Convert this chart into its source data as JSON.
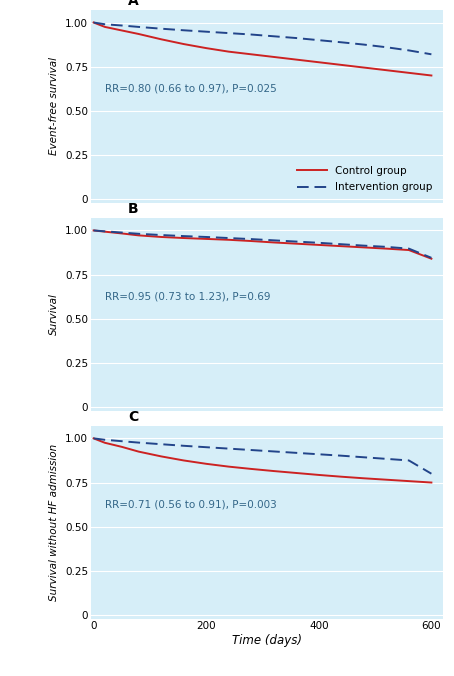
{
  "background_color": "#d6eef8",
  "figure_bg": "#ffffff",
  "control_color": "#cc2222",
  "intervention_color": "#22448a",
  "panels": [
    {
      "label": "A",
      "ylabel": "Event-free survival",
      "annotation": "RR=0.80 (0.66 to 0.97), P=0.025",
      "show_legend": true,
      "control_x": [
        0,
        20,
        50,
        80,
        120,
        160,
        200,
        240,
        280,
        320,
        360,
        400,
        440,
        480,
        520,
        560,
        600
      ],
      "control_y": [
        1.0,
        0.975,
        0.955,
        0.935,
        0.905,
        0.878,
        0.855,
        0.835,
        0.82,
        0.805,
        0.79,
        0.775,
        0.76,
        0.745,
        0.73,
        0.715,
        0.7
      ],
      "interv_x": [
        0,
        20,
        50,
        80,
        120,
        160,
        200,
        240,
        280,
        320,
        360,
        400,
        440,
        480,
        520,
        560,
        600
      ],
      "interv_y": [
        1.0,
        0.99,
        0.983,
        0.975,
        0.965,
        0.956,
        0.948,
        0.94,
        0.932,
        0.922,
        0.912,
        0.9,
        0.888,
        0.875,
        0.86,
        0.842,
        0.82
      ]
    },
    {
      "label": "B",
      "ylabel": "Survival",
      "annotation": "RR=0.95 (0.73 to 1.23), P=0.69",
      "show_legend": false,
      "control_x": [
        0,
        20,
        50,
        80,
        120,
        160,
        200,
        240,
        280,
        320,
        360,
        400,
        440,
        480,
        520,
        560,
        600
      ],
      "control_y": [
        1.0,
        0.993,
        0.983,
        0.972,
        0.963,
        0.957,
        0.952,
        0.947,
        0.94,
        0.932,
        0.925,
        0.918,
        0.911,
        0.904,
        0.897,
        0.889,
        0.84
      ],
      "interv_x": [
        0,
        20,
        50,
        80,
        120,
        160,
        200,
        240,
        280,
        320,
        360,
        400,
        440,
        480,
        520,
        560,
        600
      ],
      "interv_y": [
        1.0,
        0.995,
        0.988,
        0.981,
        0.974,
        0.968,
        0.963,
        0.957,
        0.951,
        0.944,
        0.937,
        0.93,
        0.922,
        0.914,
        0.907,
        0.897,
        0.845
      ]
    },
    {
      "label": "C",
      "ylabel": "Survival without HF admission",
      "annotation": "RR=0.71 (0.56 to 0.91), P=0.003",
      "show_legend": false,
      "control_x": [
        0,
        20,
        50,
        80,
        120,
        160,
        200,
        240,
        280,
        320,
        360,
        400,
        440,
        480,
        520,
        560,
        600
      ],
      "control_y": [
        1.0,
        0.975,
        0.952,
        0.925,
        0.898,
        0.875,
        0.856,
        0.84,
        0.827,
        0.815,
        0.804,
        0.793,
        0.783,
        0.774,
        0.766,
        0.758,
        0.75
      ],
      "interv_x": [
        0,
        20,
        50,
        80,
        120,
        160,
        200,
        240,
        280,
        320,
        360,
        400,
        440,
        480,
        520,
        560,
        600
      ],
      "interv_y": [
        1.0,
        0.992,
        0.984,
        0.976,
        0.967,
        0.958,
        0.95,
        0.942,
        0.934,
        0.926,
        0.918,
        0.91,
        0.902,
        0.893,
        0.884,
        0.875,
        0.8
      ]
    }
  ],
  "yticks": [
    0,
    0.25,
    0.5,
    0.75,
    1.0
  ],
  "ytick_labels": [
    "0",
    "0.25",
    "0.50",
    "0.75",
    "1.00"
  ],
  "xlim": [
    -5,
    620
  ],
  "ylim": [
    -0.02,
    1.07
  ],
  "xticks": [
    0,
    200,
    400,
    600
  ],
  "xlabel": "Time (days)",
  "legend_labels": [
    "Control group",
    "Intervention group"
  ]
}
